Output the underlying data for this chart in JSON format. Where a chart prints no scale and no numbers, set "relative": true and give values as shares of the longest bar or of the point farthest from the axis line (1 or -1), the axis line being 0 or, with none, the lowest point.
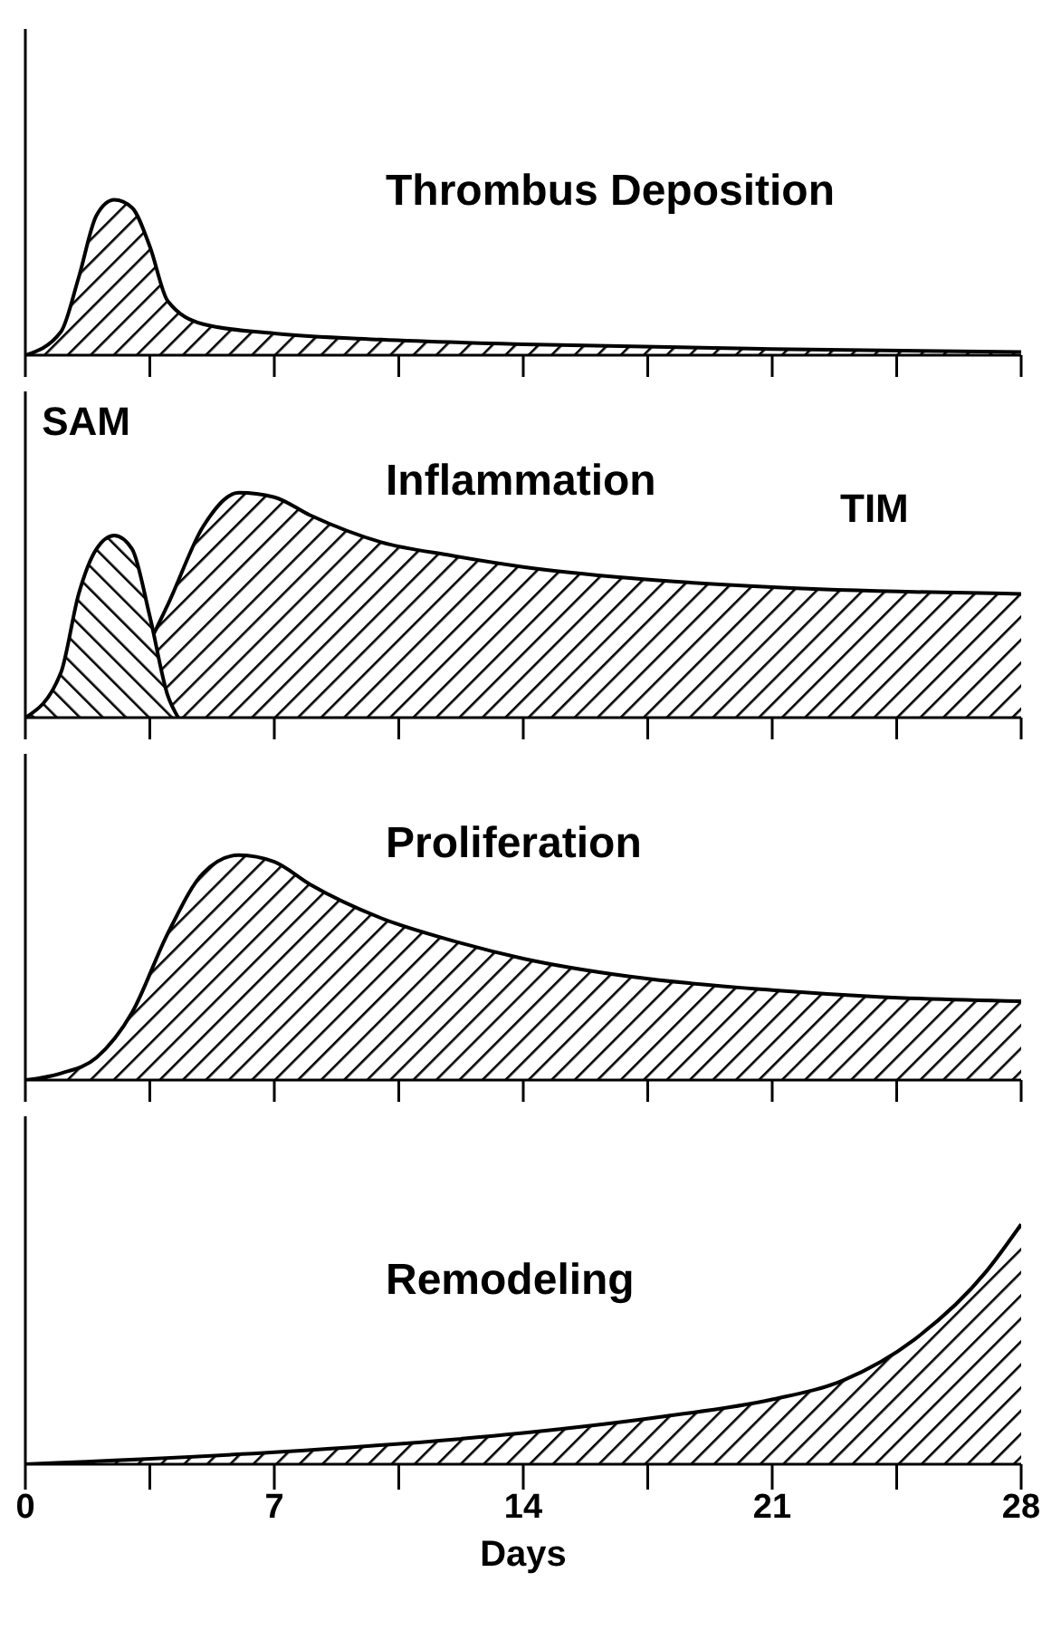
{
  "chart_data": [
    {
      "type": "area",
      "title": "Thrombus Deposition",
      "relative": true,
      "xlim": [
        0,
        28
      ],
      "xticks": [
        0,
        {
          "value": 3.5,
          "label": null
        },
        7,
        {
          "value": 10.5,
          "label": null
        },
        14,
        {
          "value": 17.5,
          "label": null
        },
        21,
        {
          "value": 24.5,
          "label": null
        },
        28
      ],
      "tick_labels": false,
      "series": [
        {
          "color": "#000000",
          "x": [
            0,
            1,
            1.5,
            2,
            2.5,
            3,
            3.5,
            4,
            5,
            7,
            10,
            14,
            21,
            28
          ],
          "values": [
            0,
            0.15,
            0.5,
            0.9,
            1,
            0.95,
            0.7,
            0.35,
            0.2,
            0.14,
            0.1,
            0.07,
            0.04,
            0.02
          ]
        }
      ]
    },
    {
      "type": "area",
      "title": "Inflammation",
      "relative": true,
      "xlim": [
        0,
        28
      ],
      "xticks": [
        0,
        {
          "value": 3.5,
          "label": null
        },
        7,
        {
          "value": 10.5,
          "label": null
        },
        14,
        {
          "value": 17.5,
          "label": null
        },
        21,
        {
          "value": 24.5,
          "label": null
        },
        28
      ],
      "tick_labels": false,
      "series": [
        {
          "name": "TIM",
          "color": "#000000",
          "x": [
            0,
            1,
            2,
            3,
            4,
            5,
            6,
            7,
            8,
            10,
            12,
            14,
            17,
            21,
            28
          ],
          "values": [
            0,
            0.02,
            0.08,
            0.2,
            0.5,
            0.85,
            1,
            0.98,
            0.9,
            0.78,
            0.72,
            0.67,
            0.62,
            0.58,
            0.55
          ]
        },
        {
          "name": "SAM",
          "color": "#000000",
          "x": [
            0,
            1,
            1.5,
            2,
            2.5,
            3,
            3.5,
            4,
            4.3
          ],
          "values": [
            0,
            0.2,
            0.55,
            0.75,
            0.81,
            0.75,
            0.45,
            0.1,
            0
          ]
        }
      ]
    },
    {
      "type": "area",
      "title": "Proliferation",
      "relative": true,
      "xlim": [
        0,
        28
      ],
      "xticks": [
        0,
        {
          "value": 3.5,
          "label": null
        },
        7,
        {
          "value": 10.5,
          "label": null
        },
        14,
        {
          "value": 17.5,
          "label": null
        },
        21,
        {
          "value": 24.5,
          "label": null
        },
        28
      ],
      "tick_labels": false,
      "series": [
        {
          "color": "#000000",
          "x": [
            0,
            1,
            2,
            3,
            4,
            5,
            6,
            7,
            8,
            10,
            12,
            14,
            17,
            21,
            24,
            28
          ],
          "values": [
            0,
            0.03,
            0.1,
            0.3,
            0.65,
            0.92,
            1,
            0.97,
            0.87,
            0.72,
            0.62,
            0.54,
            0.46,
            0.4,
            0.37,
            0.35
          ]
        }
      ]
    },
    {
      "type": "area",
      "title": "Remodeling",
      "xlabel": "Days",
      "relative": true,
      "xlim": [
        0,
        28
      ],
      "xticks": [
        0,
        {
          "value": 3.5,
          "label": null
        },
        7,
        {
          "value": 10.5,
          "label": null
        },
        14,
        {
          "value": 17.5,
          "label": null
        },
        21,
        {
          "value": 24.5,
          "label": null
        },
        28
      ],
      "tick_labels": "x",
      "series": [
        {
          "color": "#000000",
          "x": [
            0,
            7,
            14,
            18,
            21,
            23,
            25,
            27,
            28
          ],
          "values": [
            0,
            0.05,
            0.13,
            0.2,
            0.27,
            0.35,
            0.52,
            0.8,
            1
          ]
        }
      ]
    }
  ]
}
